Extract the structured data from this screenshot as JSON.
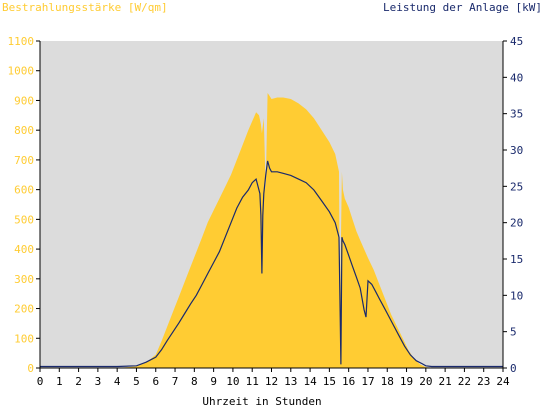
{
  "chart_data": {
    "type": "area",
    "left_axis_title": "Bestrahlungsstärke [W/qm]",
    "right_axis_title": "Leistung der Anlage [kW]",
    "xlabel": "Uhrzeit in Stunden",
    "xlim": [
      0,
      24
    ],
    "x_ticks": [
      "0",
      "1",
      "2",
      "3",
      "4",
      "5",
      "6",
      "7",
      "8",
      "9",
      "10",
      "11",
      "12",
      "13",
      "14",
      "15",
      "16",
      "17",
      "18",
      "19",
      "20",
      "21",
      "22",
      "23",
      "24"
    ],
    "ylim_left": [
      0,
      1100
    ],
    "y_ticks_left": [
      "0",
      "100",
      "200",
      "300",
      "400",
      "500",
      "600",
      "700",
      "800",
      "900",
      "1000",
      "1100"
    ],
    "ylim_right": [
      0,
      45
    ],
    "y_ticks_right": [
      "0",
      "5",
      "10",
      "15",
      "20",
      "25",
      "30",
      "35",
      "40",
      "45"
    ],
    "grid": false,
    "colors": {
      "irradiance": "#ffcc33",
      "power": "#1a2a6c",
      "plot_bg": "#dcdcdc",
      "left_axis_text": "#ffcc33",
      "right_axis_text": "#1a2a6c"
    },
    "series": [
      {
        "axis": "left",
        "kind": "area",
        "x": [
          0,
          1,
          2,
          3,
          4,
          5,
          5.5,
          6,
          6.3,
          6.6,
          6.9,
          7.2,
          7.5,
          7.8,
          8.1,
          8.4,
          8.7,
          9,
          9.3,
          9.6,
          9.9,
          10.2,
          10.5,
          10.8,
          11,
          11.2,
          11.35,
          11.45,
          11.5,
          11.6,
          11.7,
          11.8,
          11.9,
          12,
          12.3,
          12.6,
          13,
          13.4,
          13.8,
          14.2,
          14.6,
          15,
          15.3,
          15.5,
          15.55,
          15.6,
          15.65,
          15.7,
          15.8,
          16,
          16.2,
          16.4,
          16.6,
          16.8,
          17,
          17.3,
          17.6,
          17.9,
          18.2,
          18.5,
          18.8,
          19.1,
          19.4,
          19.7,
          20,
          20.3,
          20.6,
          21,
          22,
          23,
          24
        ],
        "values": [
          0,
          0,
          0,
          0,
          0,
          5,
          18,
          45,
          90,
          140,
          190,
          240,
          290,
          340,
          390,
          440,
          490,
          530,
          570,
          610,
          650,
          700,
          750,
          800,
          830,
          860,
          850,
          820,
          790,
          840,
          600,
          925,
          915,
          905,
          910,
          910,
          905,
          890,
          870,
          840,
          800,
          760,
          720,
          660,
          100,
          420,
          660,
          600,
          570,
          540,
          500,
          460,
          430,
          400,
          370,
          330,
          280,
          230,
          180,
          140,
          100,
          60,
          30,
          12,
          3,
          0,
          0,
          0,
          0,
          0,
          0
        ]
      },
      {
        "axis": "right",
        "kind": "line",
        "x": [
          0,
          1,
          2,
          3,
          4,
          5,
          5.5,
          6,
          6.3,
          6.6,
          6.9,
          7.2,
          7.5,
          7.8,
          8.1,
          8.4,
          8.7,
          9,
          9.3,
          9.6,
          9.9,
          10.2,
          10.5,
          10.8,
          11,
          11.2,
          11.4,
          11.45,
          11.5,
          11.55,
          11.6,
          11.7,
          11.8,
          11.9,
          12,
          12.3,
          12.6,
          13,
          13.4,
          13.8,
          14.2,
          14.6,
          15,
          15.3,
          15.5,
          15.55,
          15.6,
          15.65,
          15.7,
          15.8,
          16,
          16.2,
          16.4,
          16.6,
          16.8,
          16.9,
          17,
          17.2,
          17.4,
          17.6,
          17.8,
          18,
          18.3,
          18.6,
          18.9,
          19.2,
          19.5,
          19.8,
          20,
          20.3,
          20.6,
          21,
          22,
          23,
          24
        ],
        "values": [
          0.2,
          0.2,
          0.2,
          0.2,
          0.2,
          0.3,
          0.8,
          1.5,
          2.5,
          3.8,
          5,
          6.2,
          7.5,
          8.8,
          10,
          11.5,
          13,
          14.5,
          16,
          18,
          20,
          22,
          23.5,
          24.5,
          25.5,
          26,
          24,
          21,
          13,
          21,
          24,
          26.5,
          28.5,
          27.5,
          27,
          27,
          26.8,
          26.5,
          26,
          25.5,
          24.5,
          23,
          21.5,
          20,
          18,
          9,
          0.5,
          18,
          17.5,
          17,
          15.5,
          14,
          12.5,
          11,
          8,
          7,
          12,
          11.5,
          10.5,
          9.5,
          8.5,
          7.5,
          6,
          4.5,
          3,
          1.8,
          1,
          0.6,
          0.3,
          0.2,
          0.2,
          0.2,
          0.2,
          0.2,
          0.2
        ]
      }
    ]
  }
}
